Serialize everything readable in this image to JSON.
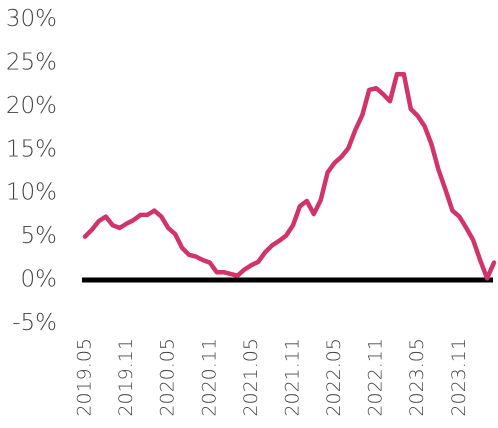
{
  "chart_data": {
    "type": "line",
    "categories": [
      "2019.05",
      null,
      null,
      null,
      null,
      null,
      "2019.11",
      null,
      null,
      null,
      null,
      null,
      "2020.05",
      null,
      null,
      null,
      null,
      null,
      "2020.11",
      null,
      null,
      null,
      null,
      null,
      "2021.05",
      null,
      null,
      null,
      null,
      null,
      "2021.11",
      null,
      null,
      null,
      null,
      null,
      "2022.05",
      null,
      null,
      null,
      null,
      null,
      "2022.11",
      null,
      null,
      null,
      null,
      null,
      "2023.05",
      null,
      null,
      null,
      null,
      null,
      "2023.11",
      null,
      null,
      null,
      null,
      null
    ],
    "series": [
      {
        "color": "#d1336b",
        "values": [
          5.0,
          5.8,
          6.8,
          7.3,
          6.3,
          6.0,
          6.5,
          6.9,
          7.5,
          7.5,
          8.0,
          7.3,
          6.0,
          5.3,
          3.7,
          2.9,
          2.7,
          2.3,
          2.0,
          0.9,
          0.9,
          0.7,
          0.5,
          1.2,
          1.7,
          2.1,
          3.2,
          4.0,
          4.5,
          5.1,
          6.3,
          8.5,
          9.1,
          7.6,
          9.2,
          12.4,
          13.5,
          14.2,
          15.2,
          17.3,
          19.0,
          21.9,
          22.1,
          21.4,
          20.6,
          23.7,
          23.7,
          19.7,
          18.9,
          17.7,
          15.6,
          12.7,
          10.4,
          8.0,
          7.3,
          6.0,
          4.6,
          2.3,
          0.2,
          2.0
        ]
      }
    ],
    "ylim": [
      -5,
      30
    ],
    "yticks": [
      {
        "value": -5,
        "label": "-5%"
      },
      {
        "value": 0,
        "label": "0%"
      },
      {
        "value": 5,
        "label": "5%"
      },
      {
        "value": 10,
        "label": "10%"
      },
      {
        "value": 15,
        "label": "15%"
      },
      {
        "value": 20,
        "label": "20%"
      },
      {
        "value": 25,
        "label": "25%"
      },
      {
        "value": 30,
        "label": "30%"
      }
    ]
  }
}
